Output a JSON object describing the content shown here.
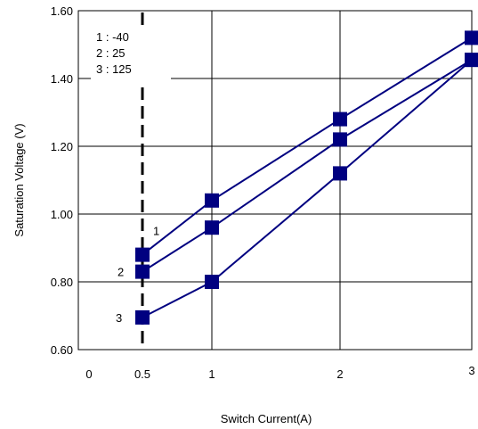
{
  "chart_data": {
    "type": "line",
    "title": "",
    "xlabel": "Switch Current(A)",
    "ylabel": "Saturation Voltage (V)",
    "ylim": [
      0.6,
      1.6
    ],
    "yticks": [
      "0.60",
      "0.80",
      "1.00",
      "1.20",
      "1.40",
      "1.60"
    ],
    "ytick_values": [
      0.6,
      0.8,
      1.0,
      1.2,
      1.4,
      1.6
    ],
    "xticks": [
      "0",
      "0.5",
      "1",
      "2",
      "3"
    ],
    "xtick_values": [
      0,
      0.5,
      1,
      2,
      3
    ],
    "grid": true,
    "legend_lines": [
      "1 : -40",
      "2 : 25",
      "3 : 125"
    ],
    "legend_position": "top-left",
    "marker_reference_x": 0.5,
    "series": [
      {
        "name": "1",
        "x": [
          0.5,
          1,
          2,
          3
        ],
        "values": [
          0.88,
          1.04,
          1.28,
          1.52
        ]
      },
      {
        "name": "2",
        "x": [
          0.5,
          1,
          2,
          3
        ],
        "values": [
          0.83,
          0.96,
          1.22,
          1.455
        ]
      },
      {
        "name": "3",
        "x": [
          0.5,
          1,
          2,
          3
        ],
        "values": [
          0.695,
          0.8,
          1.12,
          1.455
        ]
      }
    ],
    "colors": {
      "line": "#000080",
      "marker": "#000080",
      "grid": "#000000"
    }
  }
}
